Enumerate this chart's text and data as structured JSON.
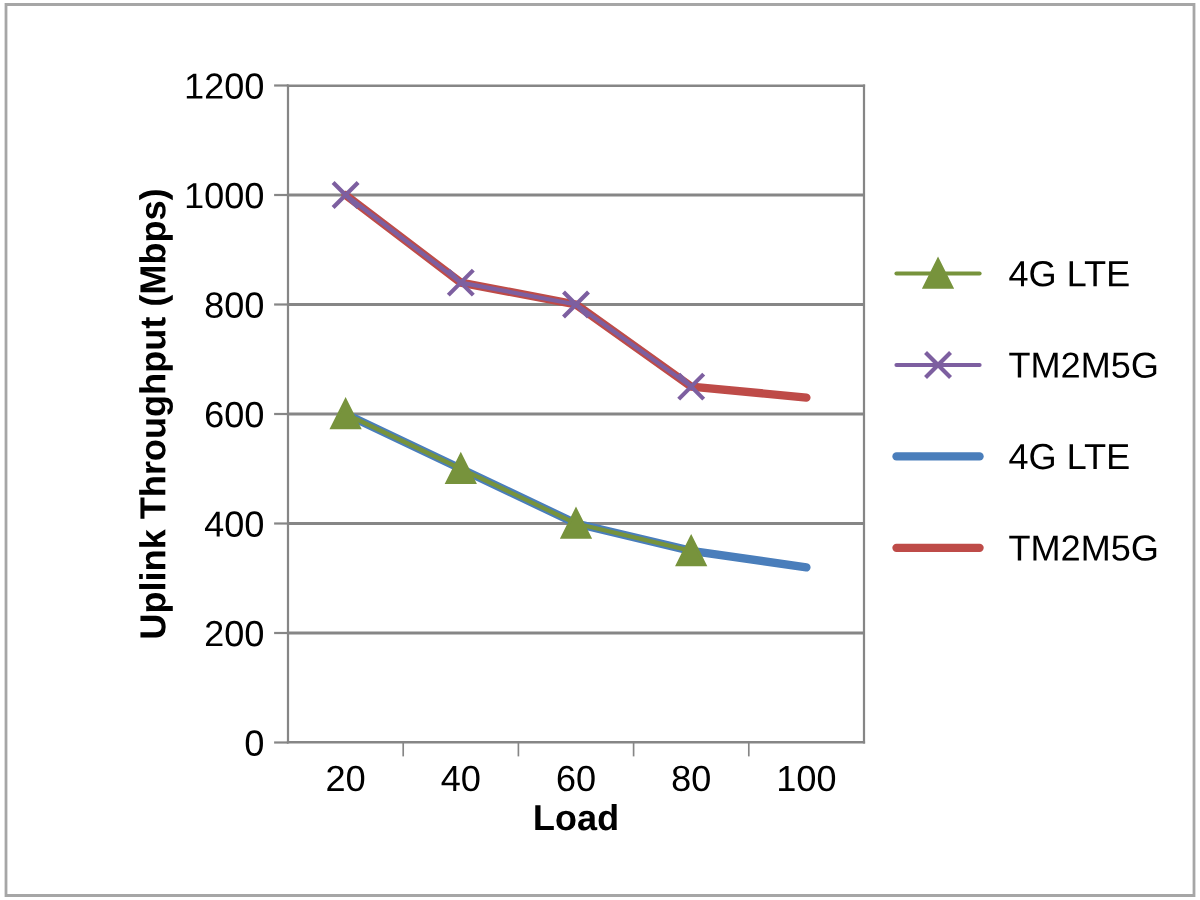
{
  "chart_data": {
    "type": "line",
    "xlabel": "Load",
    "ylabel": "Uplink Throughput (Mbps)",
    "categories": [
      "20",
      "40",
      "60",
      "80",
      "100"
    ],
    "series": [
      {
        "name": "4G LTE",
        "color": "#77933c",
        "marker": "triangle",
        "values": [
          600,
          500,
          400,
          350,
          null
        ]
      },
      {
        "name": "TM2M5G",
        "color": "#7d5fa0",
        "marker": "cross",
        "values": [
          1000,
          840,
          800,
          650,
          null
        ]
      },
      {
        "name": "4G LTE",
        "color": "#4a7ebb",
        "marker": "none",
        "values": [
          600,
          500,
          400,
          350,
          320
        ]
      },
      {
        "name": "TM2M5G",
        "color": "#be4b48",
        "marker": "none",
        "values": [
          1000,
          840,
          800,
          650,
          630
        ]
      }
    ],
    "ylim": [
      0,
      1200
    ],
    "yticks": [
      0,
      200,
      400,
      600,
      800,
      1000,
      1200
    ],
    "grid": "y",
    "legend": "right"
  }
}
